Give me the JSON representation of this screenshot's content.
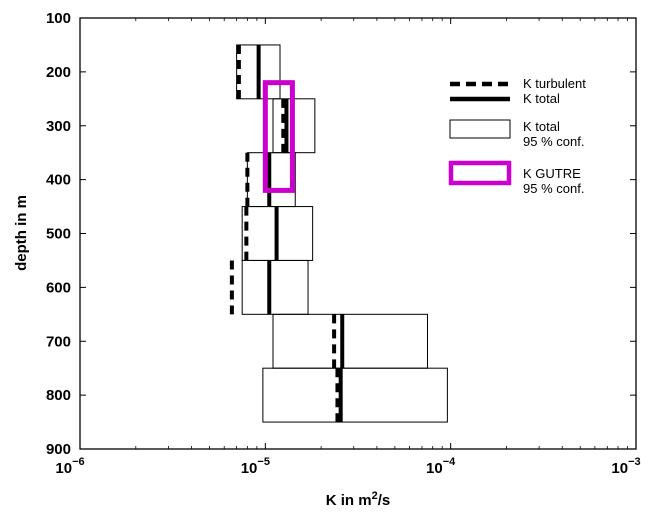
{
  "chart_data": {
    "type": "profile",
    "xlabel": "K in m",
    "xlabel_sup": "2",
    "xlabel_suffix": "/s",
    "ylabel": "depth in m",
    "x_scale": "log",
    "xlim": [
      1e-06,
      0.001
    ],
    "ylim": [
      100,
      900
    ],
    "y_inverted": true,
    "x_ticks": [
      {
        "value": 1e-06,
        "base": "10",
        "exp": "−6"
      },
      {
        "value": 1e-05,
        "base": "10",
        "exp": "−5"
      },
      {
        "value": 0.0001,
        "base": "10",
        "exp": "−4"
      },
      {
        "value": 0.001,
        "base": "10",
        "exp": "−3"
      }
    ],
    "y_ticks": [
      "100",
      "200",
      "300",
      "400",
      "500",
      "600",
      "700",
      "800",
      "900"
    ],
    "layers": [
      {
        "depth_top": 150,
        "depth_bottom": 250,
        "k_total": 9.2e-06,
        "k_turbulent": 7.2e-06,
        "ci_low": 7e-06,
        "ci_high": 1.2e-05
      },
      {
        "depth_top": 250,
        "depth_bottom": 350,
        "k_total": 1.3e-05,
        "k_turbulent": 1.25e-05,
        "ci_low": 1.1e-05,
        "ci_high": 1.85e-05
      },
      {
        "depth_top": 350,
        "depth_bottom": 450,
        "k_total": 1.05e-05,
        "k_turbulent": 8e-06,
        "ci_low": 8e-06,
        "ci_high": 1.45e-05
      },
      {
        "depth_top": 450,
        "depth_bottom": 550,
        "k_total": 1.15e-05,
        "k_turbulent": 7.9e-06,
        "ci_low": 7.5e-06,
        "ci_high": 1.8e-05
      },
      {
        "depth_top": 550,
        "depth_bottom": 650,
        "k_total": 1.05e-05,
        "k_turbulent": 6.6e-06,
        "ci_low": 7.5e-06,
        "ci_high": 1.7e-05
      },
      {
        "depth_top": 650,
        "depth_bottom": 750,
        "k_total": 2.6e-05,
        "k_turbulent": 2.35e-05,
        "ci_low": 1.1e-05,
        "ci_high": 7.5e-05
      },
      {
        "depth_top": 750,
        "depth_bottom": 850,
        "k_total": 2.55e-05,
        "k_turbulent": 2.45e-05,
        "ci_low": 9.7e-06,
        "ci_high": 9.6e-05
      }
    ],
    "gutre_box": {
      "depth_top": 220,
      "depth_bottom": 420,
      "ci_low": 1e-05,
      "ci_high": 1.4e-05
    },
    "legend": {
      "placement": "right",
      "items": [
        {
          "kind": "dashed-line",
          "lines": [
            "K turbulent"
          ]
        },
        {
          "kind": "solid-line",
          "lines": [
            "K total"
          ]
        },
        {
          "kind": "box",
          "lines": [
            "K total",
            "95 % conf."
          ]
        },
        {
          "kind": "magenta-box",
          "lines": [
            "K GUTRE",
            "95 % conf."
          ]
        }
      ]
    },
    "colors": {
      "gutre": "#cc00cc",
      "line": "#000000"
    }
  }
}
